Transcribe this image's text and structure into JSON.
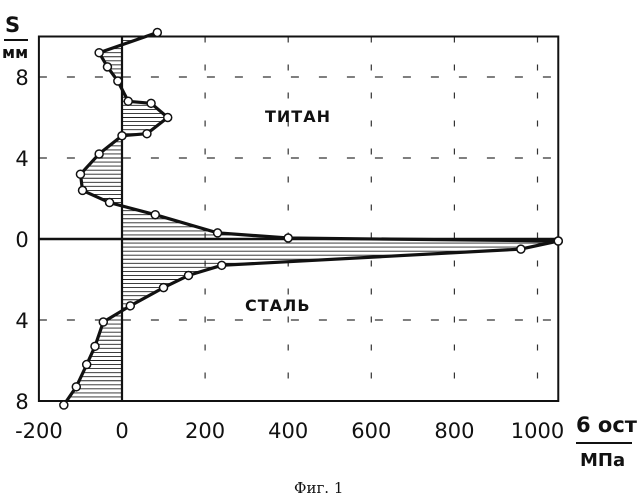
{
  "chart_data": {
    "type": "line",
    "caption": "Фиг. 1",
    "ylabel_top": "S",
    "ylabel_bottom": "мм",
    "xlabel_top": "6 ост",
    "xlabel_bottom": "МПа",
    "region_labels": {
      "upper": "ТИТАН",
      "lower": "СТАЛЬ"
    },
    "x_ticks": [
      "-200",
      "0",
      "200",
      "400",
      "600",
      "800",
      "1000"
    ],
    "y_ticks": [
      "8",
      "4",
      "0",
      "4",
      "8"
    ],
    "xlim": [
      -200,
      1050
    ],
    "ylim": [
      -8,
      10
    ],
    "grid": true,
    "series": [
      {
        "region": "titanium",
        "points": [
          {
            "x": 85,
            "y": 10.2
          },
          {
            "x": -55,
            "y": 9.2
          },
          {
            "x": -35,
            "y": 8.5
          },
          {
            "x": -10,
            "y": 7.8
          },
          {
            "x": 15,
            "y": 6.8
          },
          {
            "x": 70,
            "y": 6.7
          },
          {
            "x": 110,
            "y": 6.0
          },
          {
            "x": 60,
            "y": 5.2
          },
          {
            "x": 0,
            "y": 5.1
          },
          {
            "x": -55,
            "y": 4.2
          },
          {
            "x": -100,
            "y": 3.2
          },
          {
            "x": -95,
            "y": 2.4
          },
          {
            "x": -30,
            "y": 1.8
          },
          {
            "x": 80,
            "y": 1.2
          },
          {
            "x": 230,
            "y": 0.3
          },
          {
            "x": 400,
            "y": 0.05
          },
          {
            "x": 1050,
            "y": -0.1
          }
        ]
      },
      {
        "region": "steel",
        "points": [
          {
            "x": 1050,
            "y": -0.1
          },
          {
            "x": 960,
            "y": -0.5
          },
          {
            "x": 240,
            "y": -1.3
          },
          {
            "x": 160,
            "y": -1.8
          },
          {
            "x": 100,
            "y": -2.4
          },
          {
            "x": 20,
            "y": -3.3
          },
          {
            "x": -45,
            "y": -4.1
          },
          {
            "x": -65,
            "y": -5.3
          },
          {
            "x": -85,
            "y": -6.2
          },
          {
            "x": -110,
            "y": -7.3
          },
          {
            "x": -140,
            "y": -8.2
          }
        ]
      }
    ]
  }
}
